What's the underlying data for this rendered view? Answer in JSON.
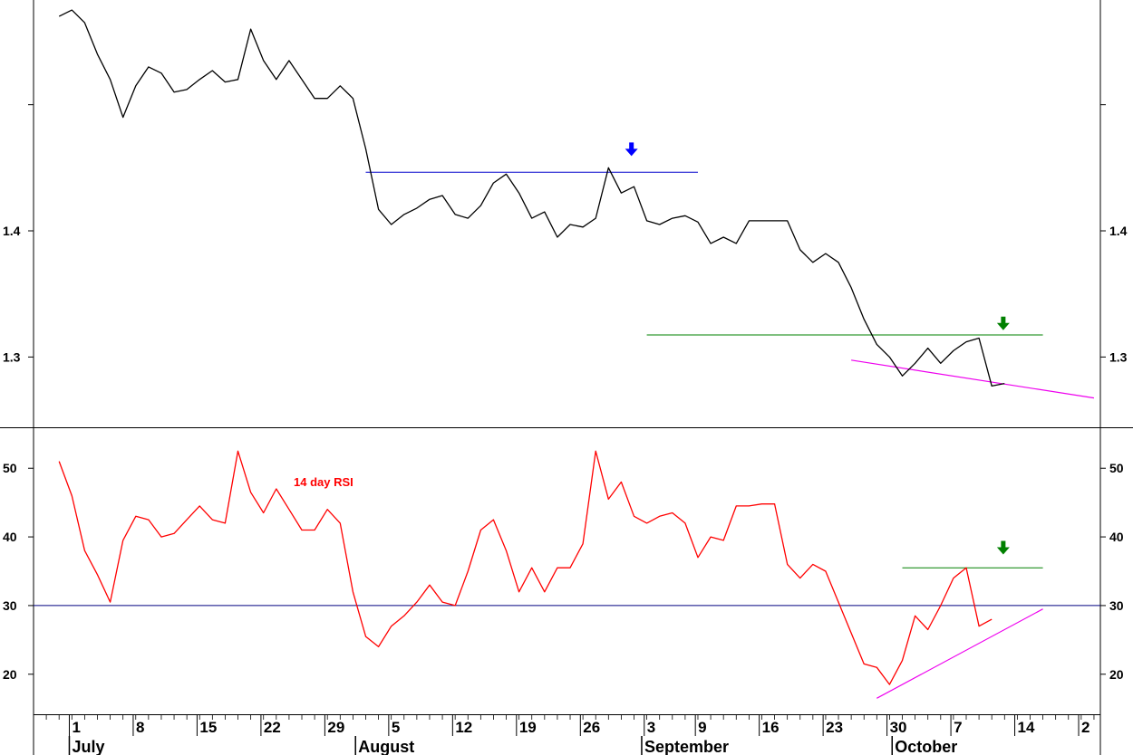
{
  "chart_data": [
    {
      "type": "line",
      "panel": "price",
      "ylim": [
        1.245,
        1.583
      ],
      "y_ticks": [
        1.3,
        1.4
      ],
      "y_tick_labels": [
        "1.3",
        "1.4"
      ],
      "grid": false,
      "series": [
        {
          "color": "#000000",
          "values": [
            1.57,
            1.575,
            1.565,
            1.54,
            1.52,
            1.49,
            1.515,
            1.53,
            1.525,
            1.51,
            1.512,
            1.52,
            1.527,
            1.518,
            1.52,
            1.56,
            1.535,
            1.52,
            1.535,
            1.52,
            1.505,
            1.505,
            1.515,
            1.505,
            1.465,
            1.417,
            1.405,
            1.413,
            1.418,
            1.425,
            1.428,
            1.413,
            1.41,
            1.42,
            1.438,
            1.445,
            1.43,
            1.41,
            1.415,
            1.395,
            1.405,
            1.403,
            1.41,
            1.45,
            1.43,
            1.435,
            1.408,
            1.405,
            1.41,
            1.412,
            1.407,
            1.39,
            1.395,
            1.39,
            1.408,
            1.408,
            1.408,
            1.408,
            1.385,
            1.375,
            1.382,
            1.375,
            1.355,
            1.33,
            1.31,
            1.3,
            1.285,
            1.295,
            1.307,
            1.295,
            1.305,
            1.312,
            1.315,
            1.277,
            1.279
          ]
        }
      ],
      "annotations": [
        {
          "kind": "hline",
          "color": "#0000cc",
          "x0": 24,
          "x1": 50,
          "y": 1.4465
        },
        {
          "kind": "hline",
          "color": "#008000",
          "x0": 46,
          "x1": 77,
          "y": 1.3175
        },
        {
          "kind": "trendline",
          "color": "#ee00ee",
          "x0": 62,
          "y0": 1.2975,
          "x1": 81,
          "y1": 1.2675
        },
        {
          "kind": "arrow-down",
          "color": "#0000ff",
          "x": 44.8,
          "y": 1.465
        },
        {
          "kind": "arrow-down",
          "color": "#008000",
          "x": 73.9,
          "y": 1.327
        }
      ]
    },
    {
      "type": "line",
      "panel": "rsi",
      "title": "14 day RSI",
      "title_color": "#ff0000",
      "ylim": [
        14.3,
        55.7
      ],
      "y_ticks": [
        20,
        30,
        40,
        50
      ],
      "y_tick_labels": [
        "20",
        "30",
        "40",
        "50"
      ],
      "grid": false,
      "series": [
        {
          "color": "#ff0000",
          "values": [
            51,
            46,
            38,
            34.5,
            30.5,
            39.5,
            43,
            42.5,
            40,
            40.5,
            42.5,
            44.5,
            42.5,
            42,
            52.5,
            46.5,
            43.5,
            47,
            44,
            41,
            41,
            44,
            42,
            32,
            25.5,
            24,
            27,
            28.5,
            30.5,
            33,
            30.5,
            30,
            35,
            41,
            42.5,
            38,
            32,
            35.5,
            32,
            35.5,
            35.5,
            39,
            52.5,
            45.5,
            48,
            43,
            42,
            43,
            43.5,
            42,
            37,
            40,
            39.5,
            44.5,
            44.5,
            44.8,
            44.8,
            36,
            34,
            36,
            35,
            30.5,
            26,
            21.5,
            21,
            18.5,
            22,
            28.5,
            26.5,
            30,
            34,
            35.5,
            27,
            28
          ]
        }
      ],
      "annotations": [
        {
          "kind": "hline",
          "color": "#000080",
          "x0": -2,
          "x1": 81.5,
          "y": 30
        },
        {
          "kind": "hline",
          "color": "#008000",
          "x0": 66,
          "x1": 77,
          "y": 35.5
        },
        {
          "kind": "trendline",
          "color": "#ee00ee",
          "x0": 64,
          "y0": 16.5,
          "x1": 77,
          "y1": 29.5
        },
        {
          "kind": "arrow-down",
          "color": "#008000",
          "x": 73.9,
          "y": 38.5
        }
      ]
    }
  ],
  "x_axis": {
    "x_range": [
      -2,
      81.5
    ],
    "date_ticks": [
      {
        "x": 0.8,
        "label": "1"
      },
      {
        "x": 5.8,
        "label": "8"
      },
      {
        "x": 10.8,
        "label": "15"
      },
      {
        "x": 15.8,
        "label": "22"
      },
      {
        "x": 20.8,
        "label": "29"
      },
      {
        "x": 25.8,
        "label": "5"
      },
      {
        "x": 30.8,
        "label": "12"
      },
      {
        "x": 35.8,
        "label": "19"
      },
      {
        "x": 40.8,
        "label": "26"
      },
      {
        "x": 45.8,
        "label": "3"
      },
      {
        "x": 49.8,
        "label": "9"
      },
      {
        "x": 54.8,
        "label": "16"
      },
      {
        "x": 59.8,
        "label": "23"
      },
      {
        "x": 64.8,
        "label": "30"
      },
      {
        "x": 69.8,
        "label": "7"
      },
      {
        "x": 74.8,
        "label": "14"
      },
      {
        "x": 79.8,
        "label": "2"
      }
    ],
    "months": [
      {
        "x": 0.8,
        "label": "July"
      },
      {
        "x": 23.2,
        "label": "August"
      },
      {
        "x": 45.6,
        "label": "September"
      },
      {
        "x": 65.2,
        "label": "October"
      }
    ]
  }
}
